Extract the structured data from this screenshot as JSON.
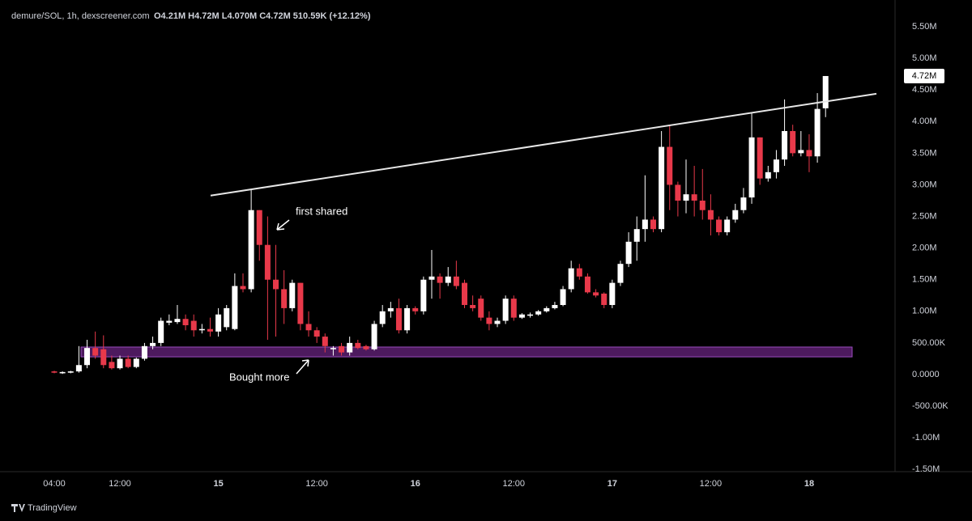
{
  "chart_data": {
    "type": "candlestick",
    "title": "demure/SOL, 1h, dexscreener.com",
    "subtitle": "O4.21M H4.72M L4.070M C4.72M 510.59K (+12.12%)",
    "brand": "TradingView",
    "categories": [
      "04:00",
      null,
      null,
      null,
      null,
      null,
      null,
      null,
      "12:00",
      null,
      null,
      null,
      null,
      null,
      null,
      null,
      null,
      null,
      null,
      null,
      "15",
      null,
      null,
      null,
      null,
      null,
      null,
      null,
      null,
      null,
      null,
      null,
      "12:00",
      null,
      null,
      null,
      null,
      null,
      null,
      null,
      null,
      null,
      null,
      null,
      "16",
      null,
      null,
      null,
      null,
      null,
      null,
      null,
      null,
      null,
      null,
      null,
      "12:00",
      null,
      null,
      null,
      null,
      null,
      null,
      null,
      null,
      null,
      null,
      null,
      "17",
      null,
      null,
      null,
      null,
      null,
      null,
      null,
      null,
      null,
      null,
      null,
      "12:00",
      null,
      null,
      null,
      null,
      null,
      null,
      null,
      null,
      null,
      null,
      null,
      "18",
      null,
      null
    ],
    "open": [
      0.05,
      0.02,
      0.03,
      0.05,
      0.15,
      0.42,
      0.4,
      0.2,
      0.1,
      0.25,
      0.12,
      0.25,
      0.45,
      0.5,
      0.82,
      0.83,
      0.88,
      0.85,
      0.7,
      0.72,
      0.68,
      0.75,
      0.72,
      1.4,
      1.35,
      2.6,
      2.05,
      1.5,
      1.35,
      1.05,
      1.45,
      0.8,
      0.7,
      0.6,
      0.4,
      0.45,
      0.35,
      0.5,
      0.45,
      0.4,
      0.8,
      1.0,
      1.05,
      0.7,
      1.05,
      1.0,
      1.5,
      1.55,
      1.45,
      1.55,
      1.45,
      1.1,
      1.2,
      0.9,
      0.8,
      0.85,
      1.2,
      0.9,
      0.93,
      0.95,
      1.0,
      1.05,
      1.1,
      1.35,
      1.68,
      1.55,
      1.3,
      1.28,
      1.1,
      1.45,
      1.75,
      2.1,
      2.3,
      2.45,
      2.3,
      3.6,
      3.0,
      2.75,
      2.85,
      2.75,
      2.6,
      2.45,
      2.25,
      2.45,
      2.6,
      2.8,
      3.75,
      3.1,
      3.2,
      3.4,
      3.85,
      3.5,
      3.55,
      3.45,
      4.21
    ],
    "high": [
      0.06,
      0.05,
      0.06,
      0.45,
      0.55,
      0.68,
      0.62,
      0.3,
      0.3,
      0.3,
      0.27,
      0.5,
      0.6,
      0.9,
      0.95,
      1.1,
      0.95,
      0.95,
      0.8,
      0.9,
      1.05,
      1.1,
      1.6,
      1.6,
      2.93,
      2.6,
      2.5,
      2.05,
      1.65,
      1.5,
      1.45,
      1.0,
      0.75,
      0.65,
      0.45,
      0.5,
      0.6,
      0.55,
      0.47,
      0.85,
      1.1,
      1.15,
      1.2,
      1.1,
      1.08,
      1.55,
      1.97,
      1.6,
      1.7,
      1.8,
      1.5,
      1.25,
      1.25,
      1.0,
      0.9,
      1.25,
      1.25,
      0.97,
      0.98,
      1.02,
      1.08,
      1.15,
      1.4,
      1.8,
      1.75,
      1.6,
      1.35,
      1.3,
      1.5,
      1.8,
      2.25,
      2.5,
      3.15,
      2.5,
      3.85,
      3.95,
      3.05,
      3.4,
      3.3,
      3.25,
      2.85,
      2.5,
      2.5,
      2.7,
      2.95,
      4.15,
      3.75,
      3.3,
      3.55,
      4.35,
      3.95,
      3.85,
      3.8,
      4.45,
      4.72
    ],
    "low": [
      0.02,
      0.01,
      0.02,
      0.03,
      0.1,
      0.25,
      0.1,
      0.08,
      0.08,
      0.1,
      0.1,
      0.22,
      0.4,
      0.45,
      0.78,
      0.8,
      0.7,
      0.6,
      0.65,
      0.6,
      0.6,
      0.7,
      0.7,
      1.3,
      1.3,
      1.8,
      0.55,
      0.6,
      0.8,
      1.0,
      0.7,
      0.6,
      0.5,
      0.35,
      0.3,
      0.3,
      0.3,
      0.4,
      0.38,
      0.38,
      0.75,
      0.9,
      0.65,
      0.65,
      0.95,
      0.95,
      1.2,
      1.2,
      1.4,
      1.35,
      1.05,
      1.0,
      0.85,
      0.7,
      0.75,
      0.8,
      0.85,
      0.88,
      0.9,
      0.93,
      0.98,
      1.03,
      1.08,
      1.3,
      1.5,
      1.28,
      1.22,
      1.05,
      1.05,
      1.4,
      1.7,
      1.8,
      2.1,
      2.25,
      2.25,
      2.6,
      2.5,
      2.55,
      2.5,
      2.45,
      2.2,
      2.2,
      2.2,
      2.4,
      2.55,
      2.7,
      3.0,
      3.05,
      3.1,
      3.3,
      3.45,
      3.45,
      3.2,
      3.35,
      4.07
    ],
    "close": [
      0.03,
      0.04,
      0.05,
      0.15,
      0.42,
      0.3,
      0.15,
      0.1,
      0.25,
      0.12,
      0.25,
      0.45,
      0.5,
      0.85,
      0.85,
      0.88,
      0.78,
      0.7,
      0.72,
      0.68,
      0.95,
      1.05,
      1.4,
      1.35,
      2.6,
      2.05,
      1.5,
      1.35,
      1.05,
      1.45,
      0.8,
      0.7,
      0.6,
      0.45,
      0.42,
      0.35,
      0.5,
      0.42,
      0.4,
      0.8,
      1.0,
      1.05,
      0.7,
      1.05,
      1.0,
      1.5,
      1.55,
      1.45,
      1.55,
      1.4,
      1.1,
      1.05,
      0.9,
      0.8,
      0.85,
      1.2,
      0.9,
      0.95,
      0.95,
      1.0,
      1.05,
      1.1,
      1.35,
      1.68,
      1.55,
      1.3,
      1.25,
      1.1,
      1.45,
      1.75,
      2.1,
      2.3,
      2.45,
      2.3,
      3.6,
      3.0,
      2.75,
      2.85,
      2.75,
      2.6,
      2.45,
      2.25,
      2.45,
      2.6,
      2.8,
      3.75,
      3.1,
      3.2,
      3.4,
      3.85,
      3.5,
      3.55,
      3.45,
      4.2,
      4.72
    ],
    "up_color": "#ffffff",
    "down_color": "#e8394a",
    "ylim": [
      -1.535,
      5.922
    ],
    "yticks": [
      {
        "value": 5.5,
        "label": "5.50M"
      },
      {
        "value": 5,
        "label": "5.00M"
      },
      {
        "value": 4.5,
        "label": "4.50M"
      },
      {
        "value": 4,
        "label": "4.00M"
      },
      {
        "value": 3.5,
        "label": "3.50M"
      },
      {
        "value": 3,
        "label": "3.00M"
      },
      {
        "value": 2.5,
        "label": "2.50M"
      },
      {
        "value": 2,
        "label": "2.00M"
      },
      {
        "value": 1.5,
        "label": "1.50M"
      },
      {
        "value": 1,
        "label": "1.00M"
      },
      {
        "value": 0.5,
        "label": "500.00K"
      },
      {
        "value": 0,
        "label": "0.0000"
      },
      {
        "value": -0.5,
        "label": "-500.00K"
      },
      {
        "value": -1,
        "label": "-1.00M"
      },
      {
        "value": -1.5,
        "label": "-1.50M"
      }
    ],
    "price_tag": "4.72M",
    "trendline": {
      "start": 2.83,
      "end": 4.44,
      "color": "#e6e6e6"
    },
    "zone": {
      "low": 0.28,
      "high": 0.435,
      "color": "#5b1e6e"
    },
    "annotations": [
      "first shared",
      "Bought more"
    ]
  }
}
